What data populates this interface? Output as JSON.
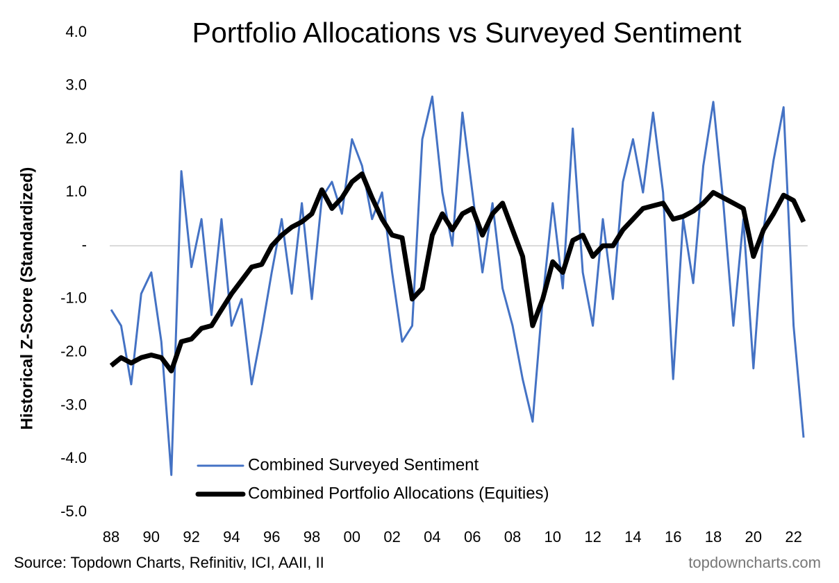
{
  "chart_data": {
    "type": "line",
    "title": "Portfolio Allocations vs Surveyed Sentiment",
    "ylabel": "Historical Z-Score (Standardized)",
    "source": "Source: Topdown Charts, Refinitiv, ICI, AAII, II",
    "watermark": "topdowncharts.com",
    "legend": "lower center",
    "grid": false,
    "xlim": [
      1988,
      2022.7
    ],
    "ylim": [
      -5,
      4
    ],
    "xticks": [
      {
        "value": 1988,
        "label": "88"
      },
      {
        "value": 1990,
        "label": "90"
      },
      {
        "value": 1992,
        "label": "92"
      },
      {
        "value": 1994,
        "label": "94"
      },
      {
        "value": 1996,
        "label": "96"
      },
      {
        "value": 1998,
        "label": "98"
      },
      {
        "value": 2000,
        "label": "00"
      },
      {
        "value": 2002,
        "label": "02"
      },
      {
        "value": 2004,
        "label": "04"
      },
      {
        "value": 2006,
        "label": "06"
      },
      {
        "value": 2008,
        "label": "08"
      },
      {
        "value": 2010,
        "label": "10"
      },
      {
        "value": 2012,
        "label": "12"
      },
      {
        "value": 2014,
        "label": "14"
      },
      {
        "value": 2016,
        "label": "16"
      },
      {
        "value": 2018,
        "label": "18"
      },
      {
        "value": 2020,
        "label": "20"
      },
      {
        "value": 2022,
        "label": "22"
      }
    ],
    "yticks": [
      {
        "value": 4,
        "label": "4.0"
      },
      {
        "value": 3,
        "label": "3.0"
      },
      {
        "value": 2,
        "label": "2.0"
      },
      {
        "value": 1,
        "label": "1.0"
      },
      {
        "value": 0,
        "label": "-"
      },
      {
        "value": -1,
        "label": "-1.0"
      },
      {
        "value": -2,
        "label": "-2.0"
      },
      {
        "value": -3,
        "label": "-3.0"
      },
      {
        "value": -4,
        "label": "-4.0"
      },
      {
        "value": -5,
        "label": "-5.0"
      }
    ],
    "x": [
      1988,
      1988.5,
      1989,
      1989.5,
      1990,
      1990.5,
      1991,
      1991.5,
      1992,
      1992.5,
      1993,
      1993.5,
      1994,
      1994.5,
      1995,
      1995.5,
      1996,
      1996.5,
      1997,
      1997.5,
      1998,
      1998.5,
      1999,
      1999.5,
      2000,
      2000.5,
      2001,
      2001.5,
      2002,
      2002.5,
      2003,
      2003.5,
      2004,
      2004.5,
      2005,
      2005.5,
      2006,
      2006.5,
      2007,
      2007.5,
      2008,
      2008.5,
      2009,
      2009.5,
      2010,
      2010.5,
      2011,
      2011.5,
      2012,
      2012.5,
      2013,
      2013.5,
      2014,
      2014.5,
      2015,
      2015.5,
      2016,
      2016.5,
      2017,
      2017.5,
      2018,
      2018.5,
      2019,
      2019.5,
      2020,
      2020.5,
      2021,
      2021.5,
      2022,
      2022.5
    ],
    "series": [
      {
        "name": "Combined Surveyed Sentiment",
        "color": "#4472c4",
        "width": 3,
        "values": [
          -1.2,
          -1.5,
          -2.6,
          -0.9,
          -0.5,
          -1.8,
          -4.3,
          1.4,
          -0.4,
          0.5,
          -1.3,
          0.5,
          -1.5,
          -1.0,
          -2.6,
          -1.6,
          -0.5,
          0.5,
          -0.9,
          0.8,
          -1.0,
          0.9,
          1.2,
          0.6,
          2.0,
          1.5,
          0.5,
          1.0,
          -0.5,
          -1.8,
          -1.5,
          2.0,
          2.8,
          1.0,
          0.0,
          2.5,
          1.0,
          -0.5,
          0.8,
          -0.8,
          -1.5,
          -2.5,
          -3.3,
          -1.0,
          0.8,
          -0.8,
          2.2,
          -0.5,
          -1.5,
          0.5,
          -1.0,
          1.2,
          2.0,
          1.0,
          2.5,
          1.0,
          -2.5,
          0.5,
          -0.7,
          1.5,
          2.7,
          0.8,
          -1.5,
          0.5,
          -2.3,
          0.3,
          1.6,
          2.6,
          -1.5,
          -3.6
        ]
      },
      {
        "name": "Combined Portfolio Allocations (Equities)",
        "color": "#000000",
        "width": 7,
        "values": [
          -2.25,
          -2.1,
          -2.2,
          -2.1,
          -2.05,
          -2.1,
          -2.35,
          -1.8,
          -1.75,
          -1.55,
          -1.5,
          -1.2,
          -0.9,
          -0.65,
          -0.4,
          -0.35,
          0.0,
          0.2,
          0.35,
          0.45,
          0.6,
          1.05,
          0.7,
          0.9,
          1.2,
          1.35,
          0.9,
          0.5,
          0.2,
          0.15,
          -1.0,
          -0.8,
          0.2,
          0.6,
          0.3,
          0.6,
          0.7,
          0.2,
          0.6,
          0.8,
          0.3,
          -0.2,
          -1.5,
          -1.0,
          -0.3,
          -0.5,
          0.1,
          0.2,
          -0.2,
          0.0,
          0.0,
          0.3,
          0.5,
          0.7,
          0.75,
          0.8,
          0.5,
          0.55,
          0.65,
          0.8,
          1.0,
          0.9,
          0.8,
          0.7,
          -0.2,
          0.3,
          0.6,
          0.95,
          0.85,
          0.45
        ]
      }
    ]
  }
}
